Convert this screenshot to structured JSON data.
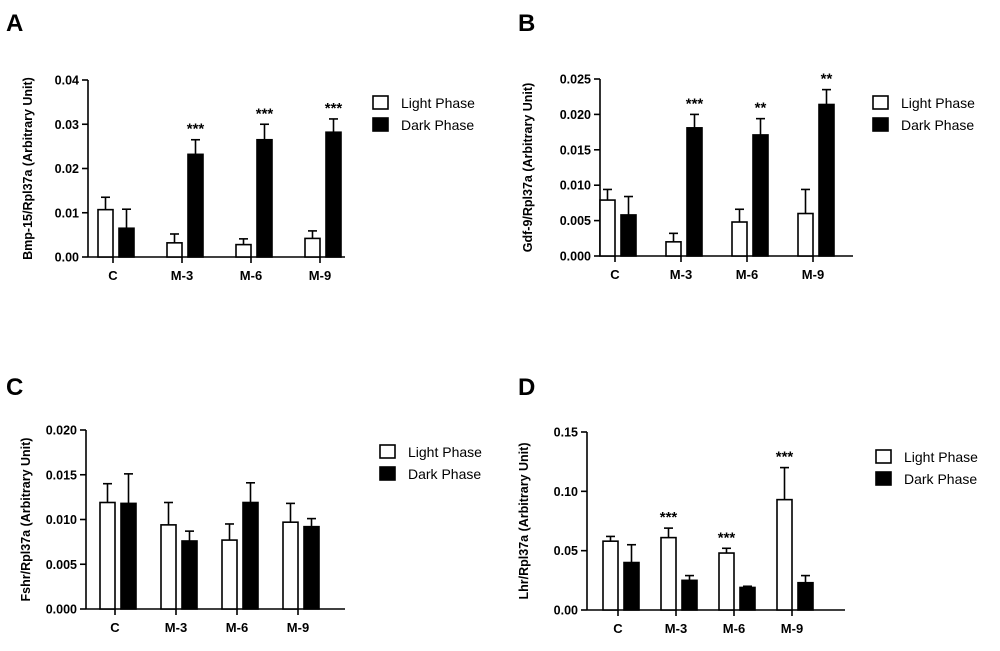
{
  "legend": {
    "light_label": "Light Phase",
    "dark_label": "Dark Phase",
    "light_color": "#ffffff",
    "dark_color": "#000000"
  },
  "chart_data": [
    {
      "panel": "A",
      "type": "bar",
      "ylabel": "Bmp-15/Rpl37a (Arbitrary Unit)",
      "categories": [
        "C",
        "M-3",
        "M-6",
        "M-9"
      ],
      "ylim": [
        0,
        0.04
      ],
      "yticks": [
        "0.00",
        "0.01",
        "0.02",
        "0.03",
        "0.04"
      ],
      "series": [
        {
          "name": "Light Phase",
          "values": [
            0.0107,
            0.0032,
            0.0028,
            0.0042
          ],
          "errors": [
            0.0028,
            0.002,
            0.0013,
            0.0017
          ]
        },
        {
          "name": "Dark Phase",
          "values": [
            0.0065,
            0.0232,
            0.0265,
            0.0282
          ],
          "errors": [
            0.0043,
            0.0033,
            0.0035,
            0.003
          ]
        }
      ],
      "significance": [
        "",
        "***",
        "***",
        "***"
      ]
    },
    {
      "panel": "B",
      "type": "bar",
      "ylabel": "Gdf-9/Rpl37a (Arbitrary Unit)",
      "categories": [
        "C",
        "M-3",
        "M-6",
        "M-9"
      ],
      "ylim": [
        0,
        0.025
      ],
      "yticks": [
        "0.000",
        "0.005",
        "0.010",
        "0.015",
        "0.020",
        "0.025"
      ],
      "series": [
        {
          "name": "Light Phase",
          "values": [
            0.0079,
            0.002,
            0.0048,
            0.006
          ],
          "errors": [
            0.0015,
            0.0012,
            0.0018,
            0.0034
          ]
        },
        {
          "name": "Dark Phase",
          "values": [
            0.0058,
            0.0181,
            0.0171,
            0.0214
          ],
          "errors": [
            0.0026,
            0.0019,
            0.0023,
            0.0021
          ]
        }
      ],
      "significance": [
        "",
        "***",
        "**",
        "**"
      ]
    },
    {
      "panel": "C",
      "type": "bar",
      "ylabel": "Fshr/Rpl37a (Arbitrary Unit)",
      "categories": [
        "C",
        "M-3",
        "M-6",
        "M-9"
      ],
      "ylim": [
        0,
        0.02
      ],
      "yticks": [
        "0.000",
        "0.005",
        "0.010",
        "0.015",
        "0.020"
      ],
      "series": [
        {
          "name": "Light Phase",
          "values": [
            0.0119,
            0.0094,
            0.0077,
            0.0097
          ],
          "errors": [
            0.0021,
            0.0025,
            0.0018,
            0.0021
          ]
        },
        {
          "name": "Dark Phase",
          "values": [
            0.0118,
            0.0076,
            0.0119,
            0.0092
          ],
          "errors": [
            0.0033,
            0.0011,
            0.0022,
            0.0009
          ]
        }
      ],
      "significance": [
        "",
        "",
        "",
        ""
      ]
    },
    {
      "panel": "D",
      "type": "bar",
      "ylabel": "Lhr/Rpl37a (Arbitrary Unit)",
      "categories": [
        "C",
        "M-3",
        "M-6",
        "M-9"
      ],
      "ylim": [
        0,
        0.15
      ],
      "yticks": [
        "0.00",
        "0.05",
        "0.10",
        "0.15"
      ],
      "series": [
        {
          "name": "Light Phase",
          "values": [
            0.058,
            0.061,
            0.048,
            0.093
          ],
          "errors": [
            0.004,
            0.008,
            0.004,
            0.027
          ]
        },
        {
          "name": "Dark Phase",
          "values": [
            0.04,
            0.025,
            0.019,
            0.023
          ],
          "errors": [
            0.015,
            0.004,
            0.001,
            0.006
          ]
        }
      ],
      "significance": [
        "",
        "***",
        "***",
        "***"
      ]
    }
  ]
}
